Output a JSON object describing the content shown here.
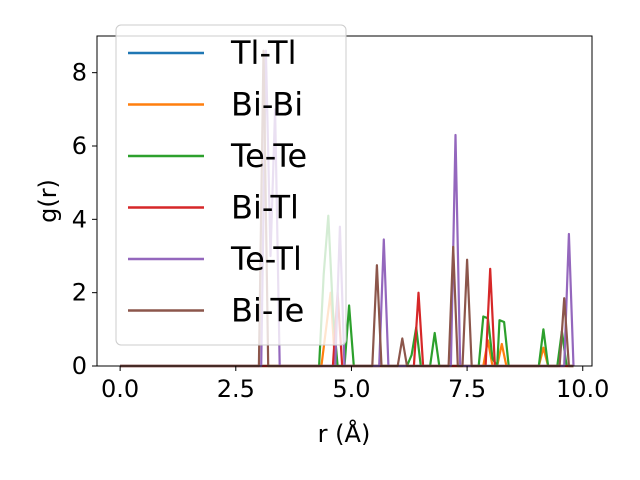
{
  "chart_data": {
    "type": "line",
    "xlabel": "r (Å)",
    "ylabel": "g(r)",
    "xlim": [
      -0.5,
      10.2
    ],
    "ylim": [
      0,
      9.0
    ],
    "grid": false,
    "legend_placement": "top-left",
    "xticks": [
      "0.0",
      "2.5",
      "5.0",
      "7.5",
      "10.0"
    ],
    "yticks": [
      "0",
      "2",
      "4",
      "6",
      "8"
    ],
    "series": [
      {
        "name": "Tl-Tl",
        "color": "#1f77b4",
        "points": [
          [
            0,
            0
          ],
          [
            9.8,
            0
          ]
        ]
      },
      {
        "name": "Bi-Bi",
        "color": "#ff7f0e",
        "points": [
          [
            0,
            0
          ],
          [
            4.35,
            0
          ],
          [
            4.45,
            1.0
          ],
          [
            4.55,
            2.0
          ],
          [
            4.65,
            0
          ],
          [
            7.85,
            0
          ],
          [
            7.95,
            0.7
          ],
          [
            8.05,
            0
          ],
          [
            8.15,
            0
          ],
          [
            8.25,
            0.6
          ],
          [
            8.35,
            0
          ],
          [
            9.05,
            0
          ],
          [
            9.15,
            0.5
          ],
          [
            9.25,
            0
          ],
          [
            9.8,
            0
          ]
        ]
      },
      {
        "name": "Te-Te",
        "color": "#2ca02c",
        "points": [
          [
            0,
            0
          ],
          [
            4.3,
            0
          ],
          [
            4.4,
            2.5
          ],
          [
            4.5,
            4.1
          ],
          [
            4.6,
            1.5
          ],
          [
            4.7,
            0
          ],
          [
            4.85,
            0
          ],
          [
            4.95,
            1.65
          ],
          [
            5.05,
            0
          ],
          [
            6.2,
            0
          ],
          [
            6.3,
            0.3
          ],
          [
            6.4,
            1.05
          ],
          [
            6.5,
            0
          ],
          [
            6.7,
            0
          ],
          [
            6.8,
            0.9
          ],
          [
            6.9,
            0
          ],
          [
            7.75,
            0
          ],
          [
            7.85,
            1.35
          ],
          [
            7.95,
            1.3
          ],
          [
            8.05,
            0.2
          ],
          [
            8.15,
            0
          ],
          [
            8.2,
            1.25
          ],
          [
            8.3,
            1.2
          ],
          [
            8.4,
            0
          ],
          [
            9.05,
            0
          ],
          [
            9.15,
            1.0
          ],
          [
            9.25,
            0
          ],
          [
            9.45,
            0
          ],
          [
            9.55,
            0.95
          ],
          [
            9.65,
            0
          ],
          [
            9.8,
            0
          ]
        ]
      },
      {
        "name": "Bi-Tl",
        "color": "#d62728",
        "points": [
          [
            0,
            0
          ],
          [
            4.6,
            0
          ],
          [
            4.7,
            2.0
          ],
          [
            4.8,
            0
          ],
          [
            6.35,
            0
          ],
          [
            6.45,
            2.0
          ],
          [
            6.55,
            0
          ],
          [
            7.9,
            0
          ],
          [
            8.0,
            2.65
          ],
          [
            8.1,
            0
          ],
          [
            9.8,
            0
          ]
        ]
      },
      {
        "name": "Te-Tl",
        "color": "#9467bd",
        "points": [
          [
            0,
            0
          ],
          [
            3.05,
            0
          ],
          [
            3.15,
            8.6
          ],
          [
            3.25,
            3.0
          ],
          [
            3.35,
            7.0
          ],
          [
            3.45,
            0
          ],
          [
            4.65,
            0
          ],
          [
            4.75,
            3.8
          ],
          [
            4.85,
            0
          ],
          [
            5.6,
            0
          ],
          [
            5.7,
            3.45
          ],
          [
            5.8,
            0
          ],
          [
            7.15,
            0
          ],
          [
            7.25,
            6.3
          ],
          [
            7.35,
            0
          ],
          [
            9.6,
            0
          ],
          [
            9.7,
            3.6
          ],
          [
            9.8,
            0
          ]
        ]
      },
      {
        "name": "Bi-Te",
        "color": "#8c564b",
        "points": [
          [
            0,
            0
          ],
          [
            3.0,
            0
          ],
          [
            3.1,
            8.6
          ],
          [
            3.2,
            0
          ],
          [
            5.45,
            0
          ],
          [
            5.55,
            2.75
          ],
          [
            5.65,
            0
          ],
          [
            6.0,
            0
          ],
          [
            6.1,
            0.75
          ],
          [
            6.2,
            0
          ],
          [
            7.1,
            0
          ],
          [
            7.2,
            3.25
          ],
          [
            7.3,
            0
          ],
          [
            7.4,
            0
          ],
          [
            7.5,
            2.9
          ],
          [
            7.6,
            0
          ],
          [
            9.5,
            0
          ],
          [
            9.6,
            1.85
          ],
          [
            9.7,
            0
          ],
          [
            9.8,
            0
          ]
        ]
      }
    ]
  }
}
